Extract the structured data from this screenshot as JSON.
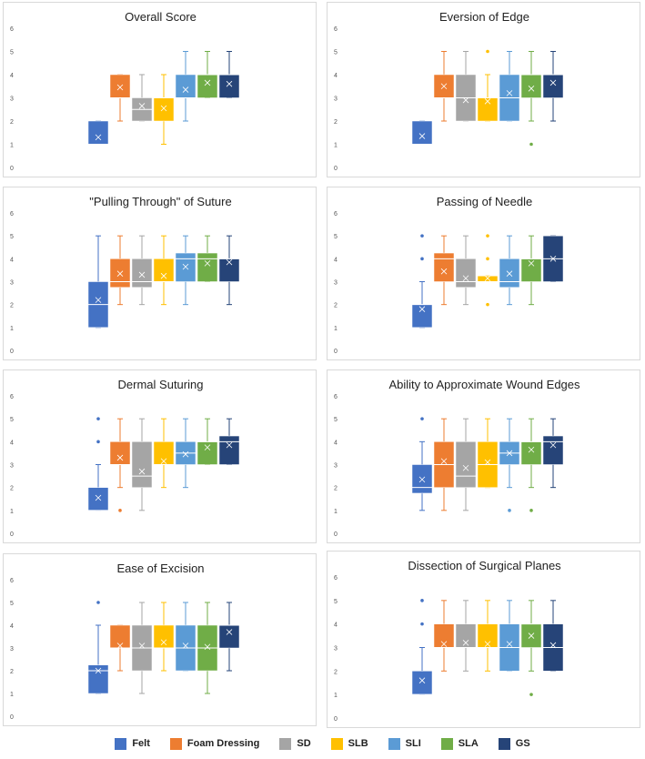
{
  "series": [
    {
      "name": "Felt",
      "color": "#4472C4"
    },
    {
      "name": "Foam Dressing",
      "color": "#ED7D31"
    },
    {
      "name": "SD",
      "color": "#A5A5A5"
    },
    {
      "name": "SLB",
      "color": "#FFC000"
    },
    {
      "name": "SLI",
      "color": "#5B9BD5"
    },
    {
      "name": "SLA",
      "color": "#70AD47"
    },
    {
      "name": "GS",
      "color": "#264478"
    }
  ],
  "chart_data": [
    {
      "type": "box",
      "title": "Overall Score",
      "ylim": [
        0,
        6
      ],
      "yticks": [
        "0",
        "1",
        "2",
        "3",
        "4",
        "5",
        "6"
      ],
      "boxes": [
        {
          "series": "Felt",
          "q1": 1,
          "q3": 2,
          "median": 1,
          "mean": 1.3,
          "whisker_low": 1,
          "whisker_high": 2,
          "outliers": []
        },
        {
          "series": "Foam Dressing",
          "q1": 3,
          "q3": 4,
          "median": 3,
          "mean": 3.45,
          "whisker_low": 2,
          "whisker_high": 4,
          "outliers": []
        },
        {
          "series": "SD",
          "q1": 2,
          "q3": 3,
          "median": 2.5,
          "mean": 2.65,
          "whisker_low": 2,
          "whisker_high": 4,
          "outliers": []
        },
        {
          "series": "SLB",
          "q1": 2,
          "q3": 3,
          "median": 3,
          "mean": 2.55,
          "whisker_low": 1,
          "whisker_high": 4,
          "outliers": []
        },
        {
          "series": "SLI",
          "q1": 3,
          "q3": 4,
          "median": 3,
          "mean": 3.35,
          "whisker_low": 2,
          "whisker_high": 5,
          "outliers": []
        },
        {
          "series": "SLA",
          "q1": 3,
          "q3": 4,
          "median": 4,
          "mean": 3.65,
          "whisker_low": 3,
          "whisker_high": 5,
          "outliers": []
        },
        {
          "series": "GS",
          "q1": 3,
          "q3": 4,
          "median": 4,
          "mean": 3.6,
          "whisker_low": 3,
          "whisker_high": 5,
          "outliers": []
        }
      ]
    },
    {
      "type": "box",
      "title": "Eversion of Edge",
      "ylim": [
        0,
        6
      ],
      "yticks": [
        "0",
        "1",
        "2",
        "3",
        "4",
        "5",
        "6"
      ],
      "boxes": [
        {
          "series": "Felt",
          "q1": 1,
          "q3": 2,
          "median": 1,
          "mean": 1.35,
          "whisker_low": 1,
          "whisker_high": 2,
          "outliers": []
        },
        {
          "series": "Foam Dressing",
          "q1": 3,
          "q3": 4,
          "median": 3,
          "mean": 3.5,
          "whisker_low": 2,
          "whisker_high": 5,
          "outliers": []
        },
        {
          "series": "SD",
          "q1": 2,
          "q3": 4,
          "median": 3,
          "mean": 2.9,
          "whisker_low": 2,
          "whisker_high": 5,
          "outliers": []
        },
        {
          "series": "SLB",
          "q1": 2,
          "q3": 3,
          "median": 3,
          "mean": 2.85,
          "whisker_low": 2,
          "whisker_high": 4,
          "outliers": [
            5
          ]
        },
        {
          "series": "SLI",
          "q1": 2,
          "q3": 4,
          "median": 3,
          "mean": 3.2,
          "whisker_low": 2,
          "whisker_high": 5,
          "outliers": []
        },
        {
          "series": "SLA",
          "q1": 3,
          "q3": 4,
          "median": 4,
          "mean": 3.4,
          "whisker_low": 2,
          "whisker_high": 5,
          "outliers": [
            1
          ]
        },
        {
          "series": "GS",
          "q1": 3,
          "q3": 4,
          "median": 4,
          "mean": 3.65,
          "whisker_low": 2,
          "whisker_high": 5,
          "outliers": []
        }
      ]
    },
    {
      "type": "box",
      "title": "\"Pulling Through\" of Suture",
      "ylim": [
        0,
        6
      ],
      "yticks": [
        "0",
        "1",
        "2",
        "3",
        "4",
        "5",
        "6"
      ],
      "boxes": [
        {
          "series": "Felt",
          "q1": 1,
          "q3": 3,
          "median": 2,
          "mean": 2.2,
          "whisker_low": 1,
          "whisker_high": 5,
          "outliers": []
        },
        {
          "series": "Foam Dressing",
          "q1": 2.75,
          "q3": 4,
          "median": 3,
          "mean": 3.35,
          "whisker_low": 2,
          "whisker_high": 5,
          "outliers": []
        },
        {
          "series": "SD",
          "q1": 2.75,
          "q3": 4,
          "median": 3,
          "mean": 3.3,
          "whisker_low": 2,
          "whisker_high": 5,
          "outliers": []
        },
        {
          "series": "SLB",
          "q1": 3,
          "q3": 4,
          "median": 3,
          "mean": 3.25,
          "whisker_low": 2,
          "whisker_high": 5,
          "outliers": []
        },
        {
          "series": "SLI",
          "q1": 3,
          "q3": 4.25,
          "median": 4,
          "mean": 3.65,
          "whisker_low": 2,
          "whisker_high": 5,
          "outliers": []
        },
        {
          "series": "SLA",
          "q1": 3,
          "q3": 4.25,
          "median": 4,
          "mean": 3.8,
          "whisker_low": 3,
          "whisker_high": 5,
          "outliers": []
        },
        {
          "series": "GS",
          "q1": 3,
          "q3": 4,
          "median": 4,
          "mean": 3.85,
          "whisker_low": 2,
          "whisker_high": 5,
          "outliers": []
        }
      ]
    },
    {
      "type": "box",
      "title": "Passing of Needle",
      "ylim": [
        0,
        6
      ],
      "yticks": [
        "0",
        "1",
        "2",
        "3",
        "4",
        "5",
        "6"
      ],
      "boxes": [
        {
          "series": "Felt",
          "q1": 1,
          "q3": 2,
          "median": 2,
          "mean": 1.8,
          "whisker_low": 1,
          "whisker_high": 3,
          "outliers": [
            4,
            5
          ]
        },
        {
          "series": "Foam Dressing",
          "q1": 3,
          "q3": 4.25,
          "median": 4,
          "mean": 3.45,
          "whisker_low": 2,
          "whisker_high": 5,
          "outliers": []
        },
        {
          "series": "SD",
          "q1": 2.75,
          "q3": 4,
          "median": 3,
          "mean": 3.15,
          "whisker_low": 2,
          "whisker_high": 5,
          "outliers": []
        },
        {
          "series": "SLB",
          "q1": 3,
          "q3": 3.25,
          "median": 3,
          "mean": 3.15,
          "whisker_low": 3,
          "whisker_high": 3.25,
          "outliers": [
            2,
            4,
            5
          ]
        },
        {
          "series": "SLI",
          "q1": 2.75,
          "q3": 4,
          "median": 3,
          "mean": 3.35,
          "whisker_low": 2,
          "whisker_high": 5,
          "outliers": []
        },
        {
          "series": "SLA",
          "q1": 3,
          "q3": 4,
          "median": 4,
          "mean": 3.8,
          "whisker_low": 2,
          "whisker_high": 5,
          "outliers": []
        },
        {
          "series": "GS",
          "q1": 3,
          "q3": 5,
          "median": 4,
          "mean": 4,
          "whisker_low": 3,
          "whisker_high": 5,
          "outliers": []
        }
      ]
    },
    {
      "type": "box",
      "title": "Dermal Suturing",
      "ylim": [
        0,
        6
      ],
      "yticks": [
        "0",
        "1",
        "2",
        "3",
        "4",
        "5",
        "6"
      ],
      "boxes": [
        {
          "series": "Felt",
          "q1": 1,
          "q3": 2,
          "median": 1,
          "mean": 1.55,
          "whisker_low": 1,
          "whisker_high": 3,
          "outliers": [
            4,
            5
          ]
        },
        {
          "series": "Foam Dressing",
          "q1": 3,
          "q3": 4,
          "median": 3,
          "mean": 3.3,
          "whisker_low": 2,
          "whisker_high": 5,
          "outliers": [
            1
          ]
        },
        {
          "series": "SD",
          "q1": 2,
          "q3": 4,
          "median": 2.5,
          "mean": 2.7,
          "whisker_low": 1,
          "whisker_high": 5,
          "outliers": []
        },
        {
          "series": "SLB",
          "q1": 3,
          "q3": 4,
          "median": 3,
          "mean": 3.15,
          "whisker_low": 2,
          "whisker_high": 5,
          "outliers": []
        },
        {
          "series": "SLI",
          "q1": 3,
          "q3": 4,
          "median": 3.5,
          "mean": 3.45,
          "whisker_low": 2,
          "whisker_high": 5,
          "outliers": []
        },
        {
          "series": "SLA",
          "q1": 3,
          "q3": 4,
          "median": 4,
          "mean": 3.75,
          "whisker_low": 3,
          "whisker_high": 5,
          "outliers": []
        },
        {
          "series": "GS",
          "q1": 3,
          "q3": 4.25,
          "median": 4,
          "mean": 3.85,
          "whisker_low": 3,
          "whisker_high": 5,
          "outliers": []
        }
      ]
    },
    {
      "type": "box",
      "title": "Ability to Approximate Wound Edges",
      "ylim": [
        0,
        6
      ],
      "yticks": [
        "0",
        "1",
        "2",
        "3",
        "4",
        "5",
        "6"
      ],
      "boxes": [
        {
          "series": "Felt",
          "q1": 1.75,
          "q3": 3,
          "median": 2,
          "mean": 2.35,
          "whisker_low": 1,
          "whisker_high": 4,
          "outliers": [
            5
          ]
        },
        {
          "series": "Foam Dressing",
          "q1": 2,
          "q3": 4,
          "median": 3,
          "mean": 3.15,
          "whisker_low": 1,
          "whisker_high": 5,
          "outliers": []
        },
        {
          "series": "SD",
          "q1": 2,
          "q3": 4,
          "median": 2.5,
          "mean": 2.85,
          "whisker_low": 1,
          "whisker_high": 5,
          "outliers": []
        },
        {
          "series": "SLB",
          "q1": 2,
          "q3": 4,
          "median": 3,
          "mean": 3.1,
          "whisker_low": 2,
          "whisker_high": 5,
          "outliers": []
        },
        {
          "series": "SLI",
          "q1": 3,
          "q3": 4,
          "median": 3.5,
          "mean": 3.5,
          "whisker_low": 2,
          "whisker_high": 5,
          "outliers": [
            1
          ]
        },
        {
          "series": "SLA",
          "q1": 3,
          "q3": 4,
          "median": 4,
          "mean": 3.65,
          "whisker_low": 2,
          "whisker_high": 5,
          "outliers": [
            1
          ]
        },
        {
          "series": "GS",
          "q1": 3,
          "q3": 4.25,
          "median": 4,
          "mean": 3.85,
          "whisker_low": 2,
          "whisker_high": 5,
          "outliers": []
        }
      ]
    },
    {
      "type": "box",
      "title": "Ease of Excision",
      "ylim": [
        0,
        6
      ],
      "yticks": [
        "0",
        "1",
        "2",
        "3",
        "4",
        "5",
        "6"
      ],
      "boxes": [
        {
          "series": "Felt",
          "q1": 1,
          "q3": 2.25,
          "median": 2,
          "mean": 2,
          "whisker_low": 1,
          "whisker_high": 4,
          "outliers": [
            5
          ]
        },
        {
          "series": "Foam Dressing",
          "q1": 3,
          "q3": 4,
          "median": 3,
          "mean": 3.1,
          "whisker_low": 2,
          "whisker_high": 4,
          "outliers": []
        },
        {
          "series": "SD",
          "q1": 2,
          "q3": 4,
          "median": 3,
          "mean": 3.1,
          "whisker_low": 1,
          "whisker_high": 5,
          "outliers": []
        },
        {
          "series": "SLB",
          "q1": 3,
          "q3": 4,
          "median": 3,
          "mean": 3.25,
          "whisker_low": 2,
          "whisker_high": 5,
          "outliers": []
        },
        {
          "series": "SLI",
          "q1": 2,
          "q3": 4,
          "median": 3,
          "mean": 3.1,
          "whisker_low": 2,
          "whisker_high": 5,
          "outliers": []
        },
        {
          "series": "SLA",
          "q1": 2,
          "q3": 4,
          "median": 3,
          "mean": 3.05,
          "whisker_low": 1,
          "whisker_high": 5,
          "outliers": []
        },
        {
          "series": "GS",
          "q1": 3,
          "q3": 4,
          "median": 4,
          "mean": 3.7,
          "whisker_low": 2,
          "whisker_high": 5,
          "outliers": []
        }
      ]
    },
    {
      "type": "box",
      "title": "Dissection of Surgical Planes",
      "ylim": [
        0,
        6
      ],
      "yticks": [
        "0",
        "1",
        "2",
        "3",
        "4",
        "5",
        "6"
      ],
      "boxes": [
        {
          "series": "Felt",
          "q1": 1,
          "q3": 2,
          "median": 1,
          "mean": 1.6,
          "whisker_low": 1,
          "whisker_high": 3,
          "outliers": [
            4,
            5
          ]
        },
        {
          "series": "Foam Dressing",
          "q1": 3,
          "q3": 4,
          "median": 3,
          "mean": 3.15,
          "whisker_low": 2,
          "whisker_high": 5,
          "outliers": []
        },
        {
          "series": "SD",
          "q1": 3,
          "q3": 4,
          "median": 3,
          "mean": 3.2,
          "whisker_low": 2,
          "whisker_high": 5,
          "outliers": []
        },
        {
          "series": "SLB",
          "q1": 3,
          "q3": 4,
          "median": 3,
          "mean": 3.15,
          "whisker_low": 2,
          "whisker_high": 5,
          "outliers": []
        },
        {
          "series": "SLI",
          "q1": 2,
          "q3": 4,
          "median": 3,
          "mean": 3.15,
          "whisker_low": 2,
          "whisker_high": 5,
          "outliers": []
        },
        {
          "series": "SLA",
          "q1": 3,
          "q3": 4,
          "median": 4,
          "mean": 3.5,
          "whisker_low": 2,
          "whisker_high": 5,
          "outliers": [
            1
          ]
        },
        {
          "series": "GS",
          "q1": 2,
          "q3": 4,
          "median": 3,
          "mean": 3.1,
          "whisker_low": 2,
          "whisker_high": 5,
          "outliers": []
        }
      ]
    }
  ]
}
